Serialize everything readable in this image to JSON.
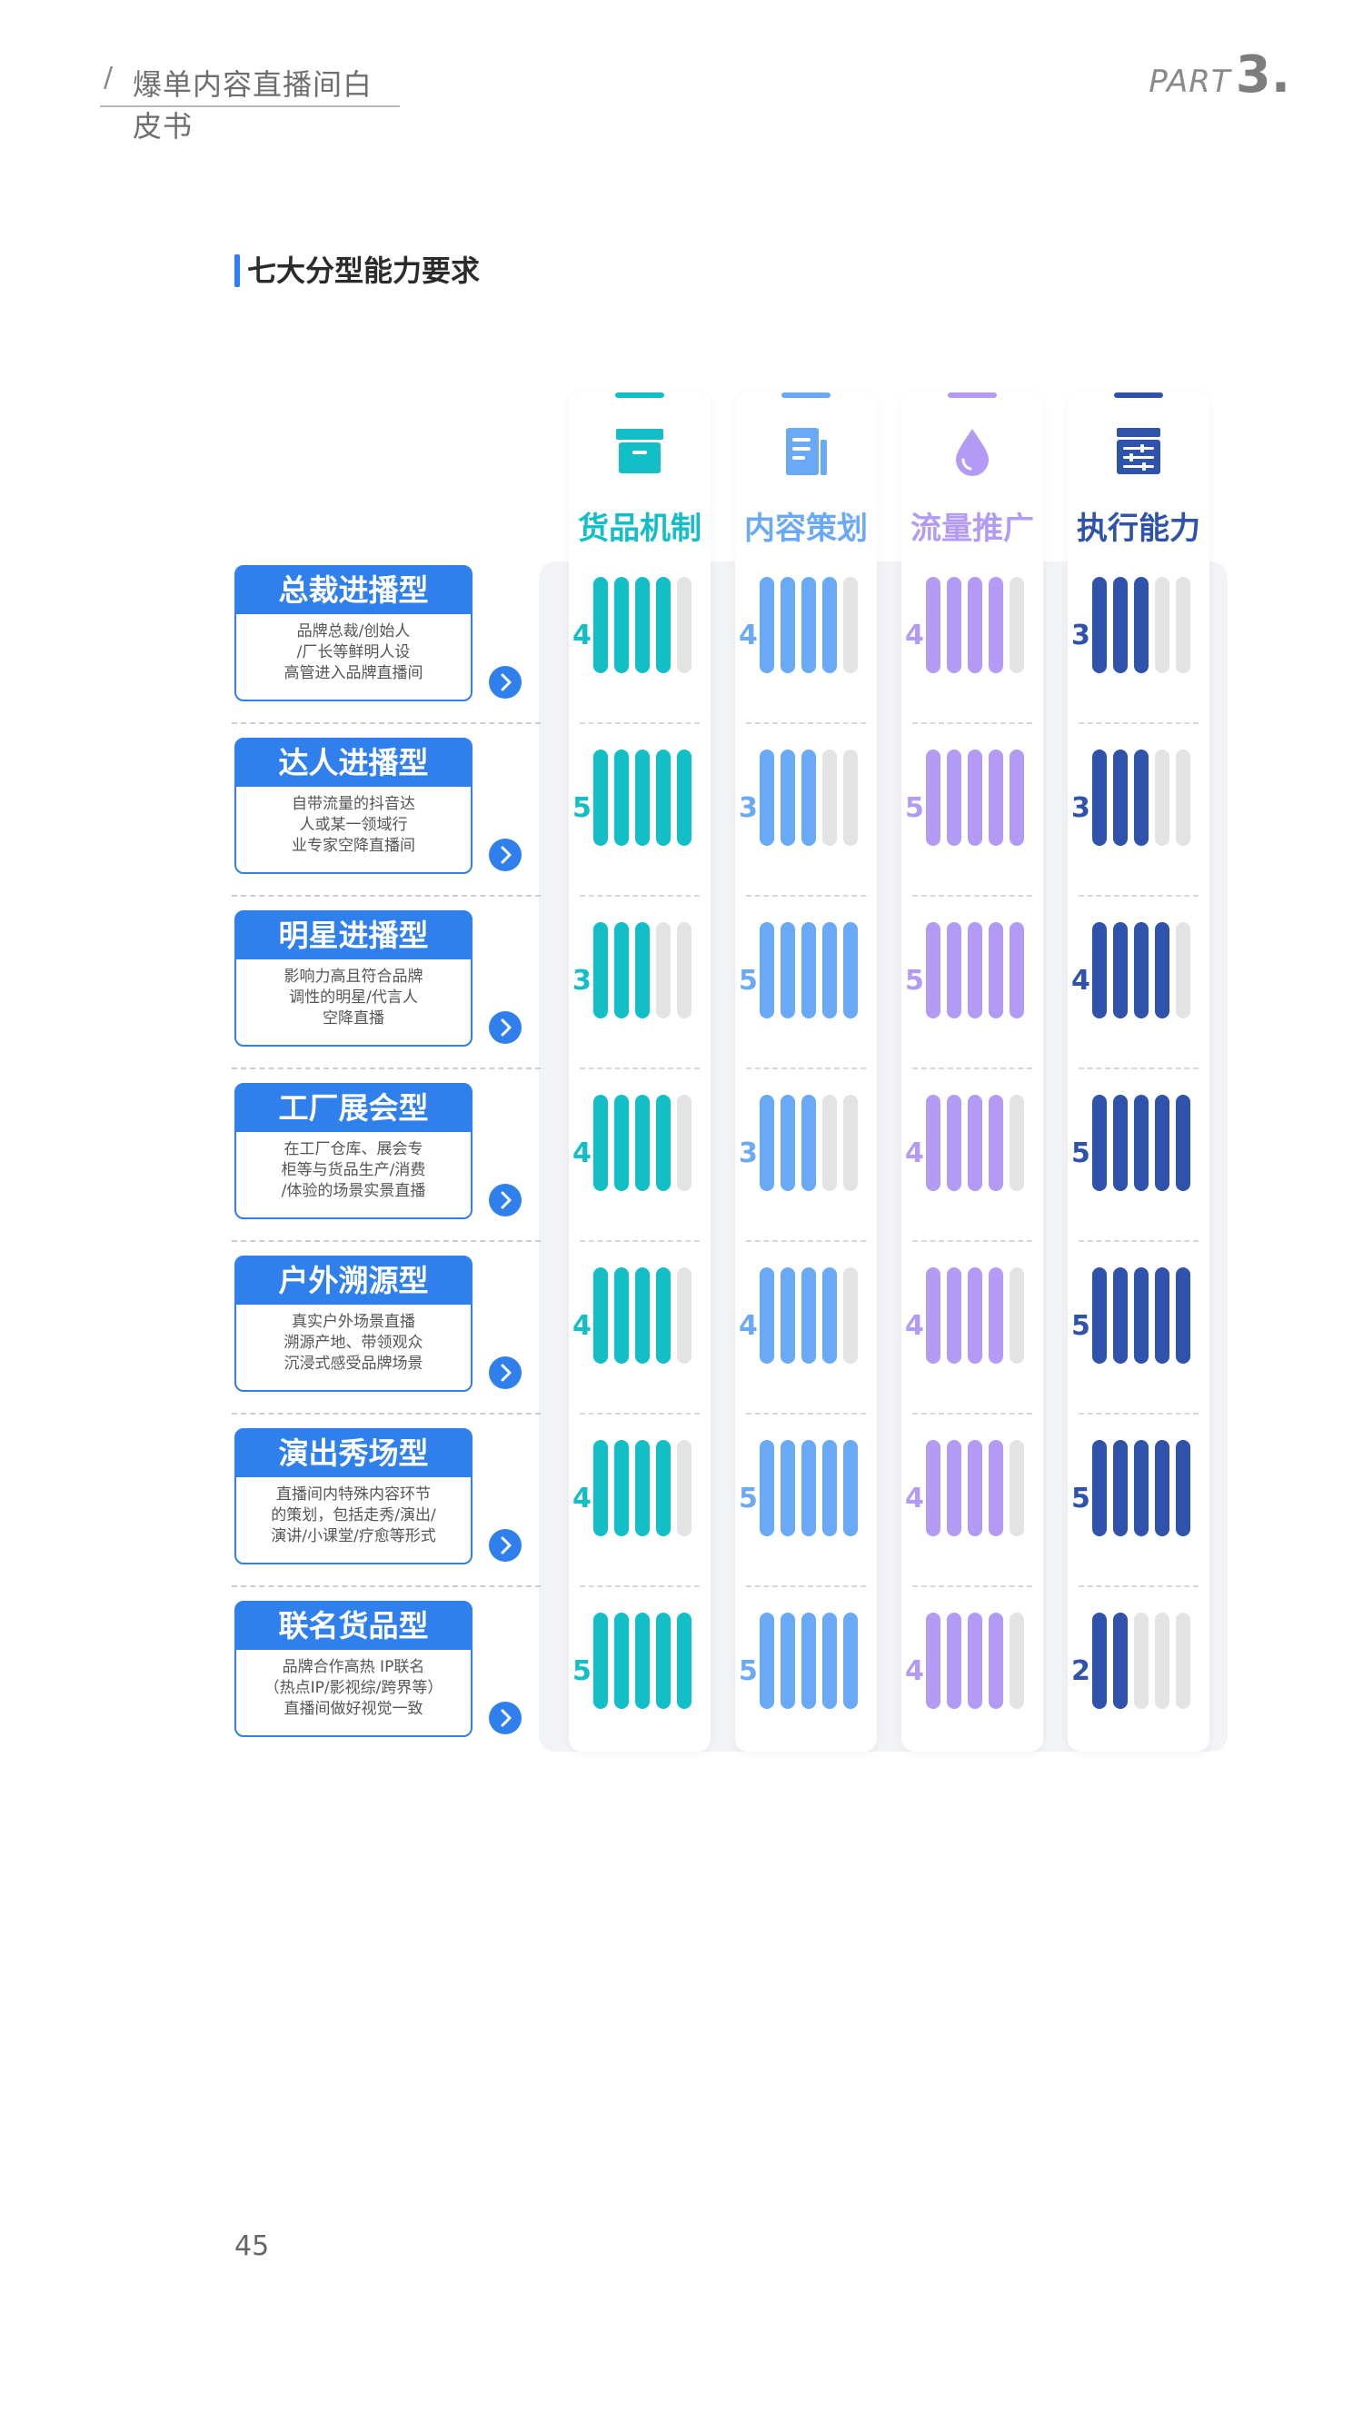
{
  "header": {
    "slash": "/",
    "title": "爆单内容直播间白皮书",
    "part_label": "PART",
    "part_number": "3."
  },
  "section_title": "七大分型能力要求",
  "columns": [
    {
      "title": "货品机制",
      "icon": "box-icon",
      "color": "#12bfc7"
    },
    {
      "title": "内容策划",
      "icon": "document-icon",
      "color": "#6aa9f5"
    },
    {
      "title": "流量推广",
      "icon": "droplet-icon",
      "color": "#b39af5"
    },
    {
      "title": "执行能力",
      "icon": "settings-list-icon",
      "color": "#2f52ad"
    }
  ],
  "rows": [
    {
      "label": "总裁进播型",
      "desc": [
        "品牌总裁/创始人",
        "/厂长等鲜明人设",
        "高管进入品牌直播间"
      ],
      "scores": [
        4,
        4,
        4,
        3
      ]
    },
    {
      "label": "达人进播型",
      "desc": [
        "自带流量的抖音达",
        "人或某一领域行",
        "业专家空降直播间"
      ],
      "scores": [
        5,
        3,
        5,
        3
      ]
    },
    {
      "label": "明星进播型",
      "desc": [
        "影响力高且符合品牌",
        "调性的明星/代言人",
        "空降直播"
      ],
      "scores": [
        3,
        5,
        5,
        4
      ]
    },
    {
      "label": "工厂展会型",
      "desc": [
        "在工厂仓库、展会专",
        "柜等与货品生产/消费",
        "/体验的场景实景直播"
      ],
      "scores": [
        4,
        3,
        4,
        5
      ]
    },
    {
      "label": "户外溯源型",
      "desc": [
        "真实户外场景直播",
        "溯源产地、带领观众",
        "沉浸式感受品牌场景"
      ],
      "scores": [
        4,
        4,
        4,
        5
      ]
    },
    {
      "label": "演出秀场型",
      "desc": [
        "直播间内特殊内容环节",
        "的策划，包括走秀/演出/",
        "演讲/小课堂/疗愈等形式"
      ],
      "scores": [
        4,
        5,
        4,
        5
      ]
    },
    {
      "label": "联名货品型",
      "desc": [
        "品牌合作高热 IP联名",
        "（热点IP/影视综/跨界等）",
        "直播间做好视觉一致"
      ],
      "scores": [
        5,
        5,
        4,
        2
      ]
    }
  ],
  "max_score": 5,
  "empty_bar_color": "#e3e3e3",
  "page_number": "45"
}
